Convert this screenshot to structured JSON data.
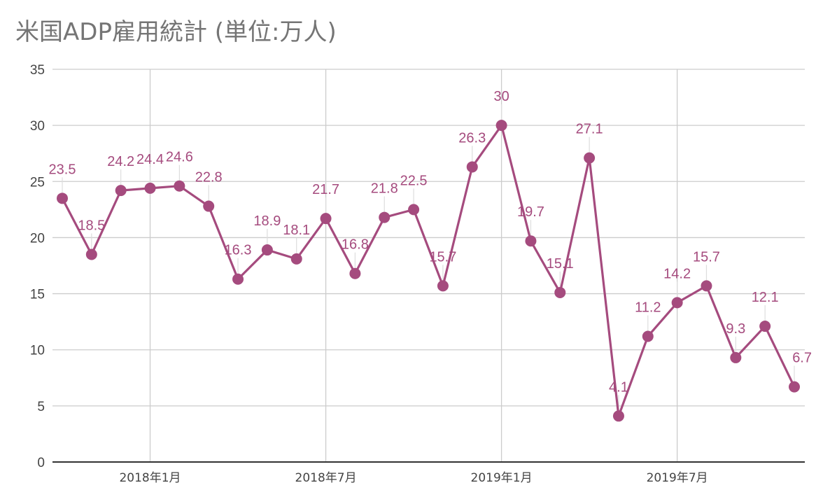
{
  "chart_data": {
    "type": "line",
    "title": "米国ADP雇用統計 (単位:万人)",
    "xlabel": "",
    "ylabel": "",
    "ylim": [
      0,
      35
    ],
    "yticks": [
      "0",
      "5",
      "10",
      "15",
      "20",
      "25",
      "30",
      "35"
    ],
    "xticks": [
      {
        "label": "2018年1月",
        "at_index": 3
      },
      {
        "label": "2018年7月",
        "at_index": 9
      },
      {
        "label": "2019年1月",
        "at_index": 15
      },
      {
        "label": "2019年7月",
        "at_index": 21
      }
    ],
    "x": [
      "2017-10",
      "2017-11",
      "2017-12",
      "2018-01",
      "2018-02",
      "2018-03",
      "2018-04",
      "2018-05",
      "2018-06",
      "2018-07",
      "2018-08",
      "2018-09",
      "2018-10",
      "2018-11",
      "2018-12",
      "2019-01",
      "2019-02",
      "2019-03",
      "2019-04",
      "2019-05",
      "2019-06",
      "2019-07",
      "2019-08",
      "2019-09",
      "2019-10",
      "2019-11"
    ],
    "series": [
      {
        "values": [
          23.5,
          18.5,
          24.2,
          24.4,
          24.6,
          22.8,
          16.3,
          18.9,
          18.1,
          21.7,
          16.8,
          21.8,
          22.5,
          15.7,
          26.3,
          30,
          19.7,
          15.1,
          27.1,
          4.1,
          11.2,
          14.2,
          15.7,
          9.3,
          12.1,
          6.7
        ],
        "labels": [
          "23.5",
          "18.5",
          "24.2",
          "24.4",
          "24.6",
          "22.8",
          "16.3",
          "18.9",
          "18.1",
          "21.7",
          "16.8",
          "21.8",
          "22.5",
          "15.7",
          "26.3",
          "30",
          "19.7",
          "15.1",
          "27.1",
          "4.1",
          "11.2",
          "14.2",
          "15.7",
          "9.3",
          "12.1",
          "6.7"
        ]
      }
    ],
    "grid": true,
    "legend": "none",
    "colors": {
      "line": "#a54b7e",
      "grid": "#cccccc",
      "axis": "#333333",
      "text": "#444444",
      "title": "#757575"
    }
  }
}
